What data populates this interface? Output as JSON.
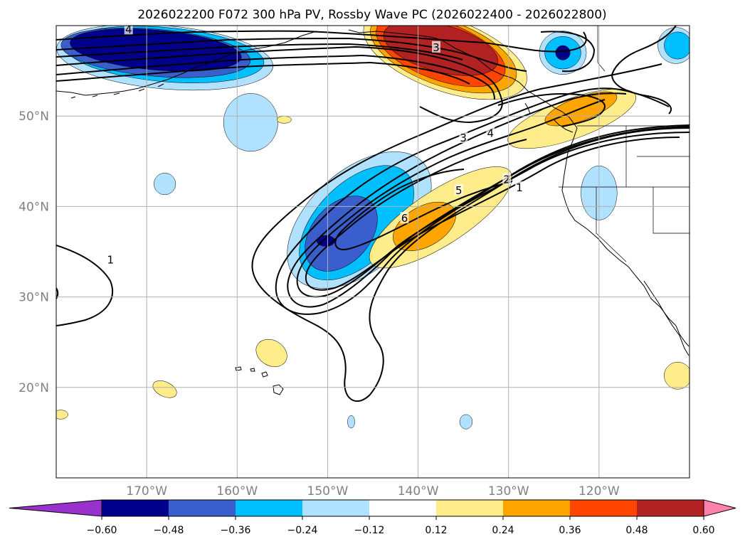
{
  "title": "2026022200 F072 300 hPa PV, Rossby Wave PC (2026022400 - 2026022800)",
  "map": {
    "region": "North Pacific / western North America",
    "lon_range": [
      -180,
      -110
    ],
    "lat_range": [
      10,
      60
    ],
    "gridlines": true,
    "lat_ticks": [
      {
        "value": 50,
        "label": "50°N"
      },
      {
        "value": 40,
        "label": "40°N"
      },
      {
        "value": 30,
        "label": "30°N"
      },
      {
        "value": 20,
        "label": "20°N"
      }
    ],
    "lon_ticks": [
      {
        "value": -170,
        "label": "170°W"
      },
      {
        "value": -160,
        "label": "160°W"
      },
      {
        "value": -150,
        "label": "150°W"
      },
      {
        "value": -140,
        "label": "140°W"
      },
      {
        "value": -130,
        "label": "130°W"
      },
      {
        "value": -120,
        "label": "120°W"
      }
    ],
    "contour_labels": [
      {
        "text": "1",
        "lon": -174,
        "lat": 34.0
      },
      {
        "text": "3",
        "lon": -135,
        "lat": 47.5
      },
      {
        "text": "4",
        "lon": -132,
        "lat": 48.0
      },
      {
        "text": "5",
        "lon": -135.5,
        "lat": 41.7
      },
      {
        "text": "6",
        "lon": -141.5,
        "lat": 38.6
      },
      {
        "text": "2",
        "lon": -130.2,
        "lat": 42.9
      },
      {
        "text": "1",
        "lon": -128.8,
        "lat": 42.0
      },
      {
        "text": "4",
        "lon": -172,
        "lat": 59.5
      },
      {
        "text": "3",
        "lon": -138,
        "lat": 57.5
      }
    ],
    "shaded_regions": [
      {
        "level": -0.24,
        "cx": -146.5,
        "cy": 38.5,
        "rx": 9.5,
        "ry": 5.5,
        "rot": -42
      },
      {
        "level": -0.36,
        "cx": -146.8,
        "cy": 38.2,
        "rx": 7.8,
        "ry": 4.4,
        "rot": -45
      },
      {
        "level": -0.48,
        "cx": -148.5,
        "cy": 37.0,
        "rx": 4.8,
        "ry": 3.2,
        "rot": -48
      },
      {
        "level": -0.6,
        "cx": -150.2,
        "cy": 36.2,
        "rx": 1.0,
        "ry": 0.6,
        "rot": 0
      },
      {
        "level": 0.24,
        "cx": -137.5,
        "cy": 38.8,
        "rx": 9.2,
        "ry": 3.0,
        "rot": -33
      },
      {
        "level": 0.36,
        "cx": -139.3,
        "cy": 37.8,
        "rx": 3.8,
        "ry": 2.2,
        "rot": -30
      },
      {
        "level": -0.24,
        "cx": -168.0,
        "cy": 56.5,
        "rx": 12.0,
        "ry": 3.5,
        "rot": 5
      },
      {
        "level": -0.36,
        "cx": -168.0,
        "cy": 56.8,
        "rx": 11.0,
        "ry": 3.0,
        "rot": 5
      },
      {
        "level": -0.48,
        "cx": -169.0,
        "cy": 57.0,
        "rx": 10.5,
        "ry": 2.6,
        "rot": 5
      },
      {
        "level": -0.6,
        "cx": -169.0,
        "cy": 57.3,
        "rx": 9.5,
        "ry": 2.2,
        "rot": 5
      },
      {
        "level": -0.24,
        "cx": -158.5,
        "cy": 49.3,
        "rx": 3.0,
        "ry": 3.2,
        "rot": 0
      },
      {
        "level": 0.24,
        "cx": -137.0,
        "cy": 56.8,
        "rx": 9.5,
        "ry": 4.0,
        "rot": 20
      },
      {
        "level": 0.36,
        "cx": -137.2,
        "cy": 57.0,
        "rx": 8.5,
        "ry": 3.6,
        "rot": 20
      },
      {
        "level": 0.48,
        "cx": -137.5,
        "cy": 57.2,
        "rx": 7.5,
        "ry": 3.2,
        "rot": 20
      },
      {
        "level": 0.6,
        "cx": -137.5,
        "cy": 57.5,
        "rx": 6.5,
        "ry": 2.6,
        "rot": 15
      },
      {
        "level": 0.24,
        "cx": -123.0,
        "cy": 49.7,
        "rx": 7.5,
        "ry": 2.2,
        "rot": -20
      },
      {
        "level": 0.36,
        "cx": -122.0,
        "cy": 50.8,
        "rx": 4.2,
        "ry": 1.3,
        "rot": -20
      },
      {
        "level": -0.24,
        "cx": -124.0,
        "cy": 57.0,
        "rx": 2.6,
        "ry": 2.4,
        "rot": 0
      },
      {
        "level": -0.36,
        "cx": -124.0,
        "cy": 57.0,
        "rx": 2.0,
        "ry": 1.8,
        "rot": 0
      },
      {
        "level": -0.6,
        "cx": -124.0,
        "cy": 57.0,
        "rx": 0.8,
        "ry": 0.8,
        "rot": 0
      },
      {
        "level": -0.24,
        "cx": -111.5,
        "cy": 57.8,
        "rx": 2.0,
        "ry": 2.0,
        "rot": 0
      },
      {
        "level": -0.36,
        "cx": -111.3,
        "cy": 57.8,
        "rx": 1.5,
        "ry": 1.5,
        "rot": 0
      },
      {
        "level": -0.24,
        "cx": -120.0,
        "cy": 41.5,
        "rx": 2.0,
        "ry": 3.0,
        "rot": 0
      },
      {
        "level": -0.24,
        "cx": -168.0,
        "cy": 42.5,
        "rx": 1.2,
        "ry": 1.2,
        "rot": 0
      },
      {
        "level": 0.24,
        "cx": -156.2,
        "cy": 23.8,
        "rx": 1.8,
        "ry": 1.4,
        "rot": 30
      },
      {
        "level": 0.24,
        "cx": -168.0,
        "cy": 19.8,
        "rx": 1.4,
        "ry": 0.8,
        "rot": 25
      },
      {
        "level": 0.24,
        "cx": -111.3,
        "cy": 21.3,
        "rx": 1.5,
        "ry": 1.5,
        "rot": 0
      },
      {
        "level": 0.24,
        "cx": -179.5,
        "cy": 17.0,
        "rx": 0.8,
        "ry": 0.5,
        "rot": 0
      },
      {
        "level": 0.24,
        "cx": -154.8,
        "cy": 49.6,
        "rx": 0.8,
        "ry": 0.4,
        "rot": 0
      },
      {
        "level": -0.24,
        "cx": -134.7,
        "cy": 16.2,
        "rx": 0.7,
        "ry": 0.8,
        "rot": 0
      },
      {
        "level": -0.24,
        "cx": -147.4,
        "cy": 16.2,
        "rx": 0.4,
        "ry": 0.7,
        "rot": 0
      }
    ]
  },
  "colorbar": {
    "boundaries": [
      -0.72,
      -0.6,
      -0.48,
      -0.36,
      -0.24,
      -0.12,
      0.12,
      0.24,
      0.36,
      0.48,
      0.6,
      0.72
    ],
    "colors": [
      "#9932cc",
      "#00008b",
      "#3a5fcd",
      "#00bfff",
      "#b0e2ff",
      "#ffffff",
      "#ffec8b",
      "#ffa500",
      "#ff4500",
      "#b22222",
      "#ff82ab"
    ],
    "under_color": "#9932cc",
    "over_color": "#ff82ab",
    "extend": "both",
    "tick_labels": [
      "−0.60",
      "−0.48",
      "−0.36",
      "−0.24",
      "−0.12",
      "0.12",
      "0.24",
      "0.36",
      "0.48",
      "0.60"
    ]
  },
  "chart_data": {
    "type": "map-contour",
    "title": "2026022200 F072 300 hPa PV, Rossby Wave PC (2026022400 - 2026022800)",
    "x": "longitude",
    "y": "latitude",
    "xlim": [
      -180,
      -110
    ],
    "ylim": [
      10,
      60
    ],
    "contour_levels_pv": [
      1,
      2,
      3,
      4,
      5,
      6
    ],
    "shading_levels_pc": [
      -0.6,
      -0.48,
      -0.36,
      -0.24,
      -0.12,
      0.12,
      0.24,
      0.36,
      0.48,
      0.6
    ],
    "grid": true,
    "legend": "horizontal colorbar bottom"
  }
}
